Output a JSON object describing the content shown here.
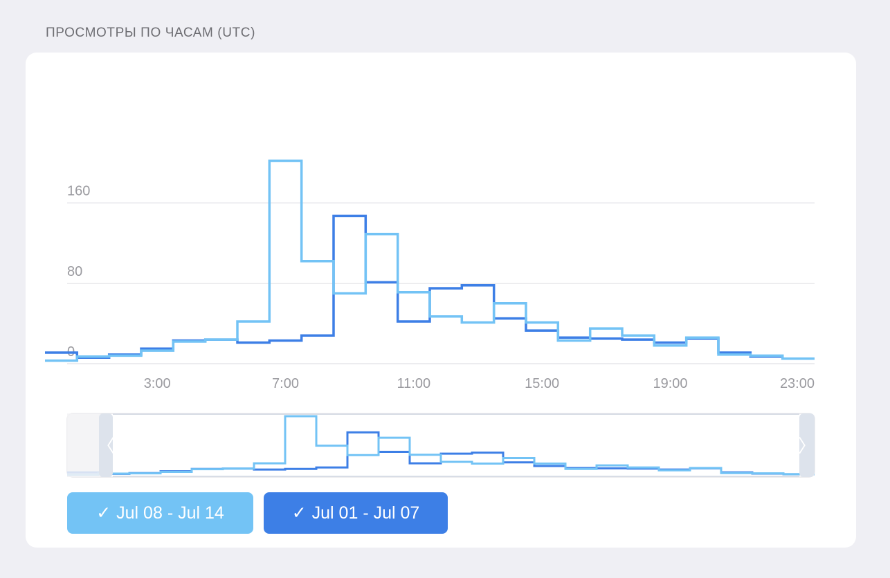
{
  "section_title": "ПРОСМОТРЫ ПО ЧАСАМ (UTC)",
  "colors": {
    "series_a": "#73c3f5",
    "series_b": "#3d7fe6",
    "grid": "#e6e6ea",
    "axis_text": "#9a9a9f"
  },
  "chart_data": {
    "type": "line",
    "step": true,
    "x": [
      0,
      1,
      2,
      3,
      4,
      5,
      6,
      7,
      8,
      9,
      10,
      11,
      12,
      13,
      14,
      15,
      16,
      17,
      18,
      19,
      20,
      21,
      22,
      23
    ],
    "xticks": [
      "3:00",
      "7:00",
      "11:00",
      "15:00",
      "19:00",
      "23:00"
    ],
    "yticks": [
      0,
      80,
      160
    ],
    "ylim": [
      0,
      200
    ],
    "grid": true,
    "legend": "bottom",
    "series": [
      {
        "name": "Jul 08 - Jul 14",
        "color": "#73c3f5",
        "values": [
          3,
          7,
          8,
          13,
          22,
          24,
          42,
          202,
          102,
          70,
          129,
          71,
          47,
          41,
          60,
          41,
          23,
          35,
          28,
          18,
          26,
          9,
          8,
          5
        ]
      },
      {
        "name": "Jul 01 - Jul 07",
        "color": "#3d7fe6",
        "values": [
          11,
          6,
          9,
          15,
          23,
          24,
          21,
          23,
          28,
          147,
          81,
          42,
          75,
          78,
          45,
          33,
          26,
          25,
          24,
          21,
          25,
          11,
          7,
          5
        ]
      }
    ]
  },
  "navigator": {
    "left_handle_icon": "chevron-left-icon",
    "right_handle_icon": "chevron-right-icon",
    "left_glyph": "〈",
    "right_glyph": "〉"
  },
  "legend": {
    "items": [
      {
        "label": "Jul 08 - Jul 14",
        "check": "✓",
        "color": "#73c3f5"
      },
      {
        "label": "Jul 01 - Jul 07",
        "check": "✓",
        "color": "#3d7fe6"
      }
    ]
  }
}
